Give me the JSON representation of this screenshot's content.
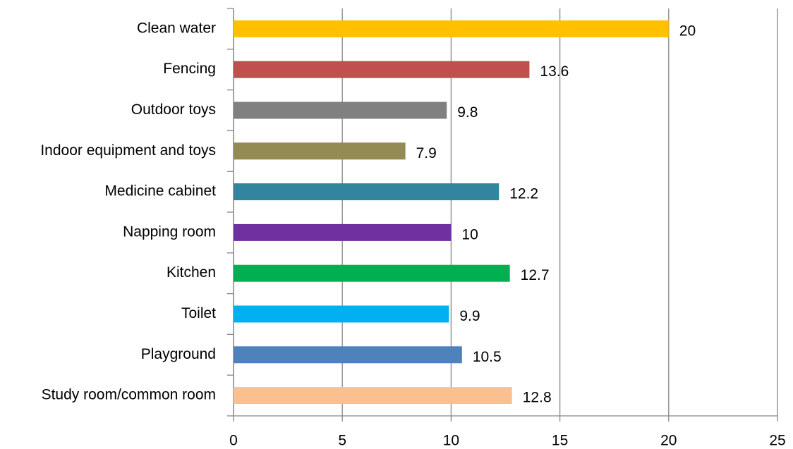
{
  "chart_data": {
    "type": "bar",
    "orientation": "horizontal",
    "categories": [
      "Clean water",
      "Fencing",
      "Outdoor toys",
      "Indoor equipment and toys",
      "Medicine cabinet",
      "Napping room",
      "Kitchen",
      "Toilet",
      "Playground",
      "Study room/common room"
    ],
    "values": [
      20,
      13.6,
      9.8,
      7.9,
      12.2,
      10,
      12.7,
      9.9,
      10.5,
      12.8
    ],
    "colors": [
      "#FFC000",
      "#C0504D",
      "#808080",
      "#948A54",
      "#31859C",
      "#7030A0",
      "#00B050",
      "#00B0F0",
      "#4F81BD",
      "#FAC090"
    ],
    "xlim": [
      0,
      25
    ],
    "xticks": [
      0,
      5,
      10,
      15,
      20,
      25
    ],
    "grid": true
  }
}
